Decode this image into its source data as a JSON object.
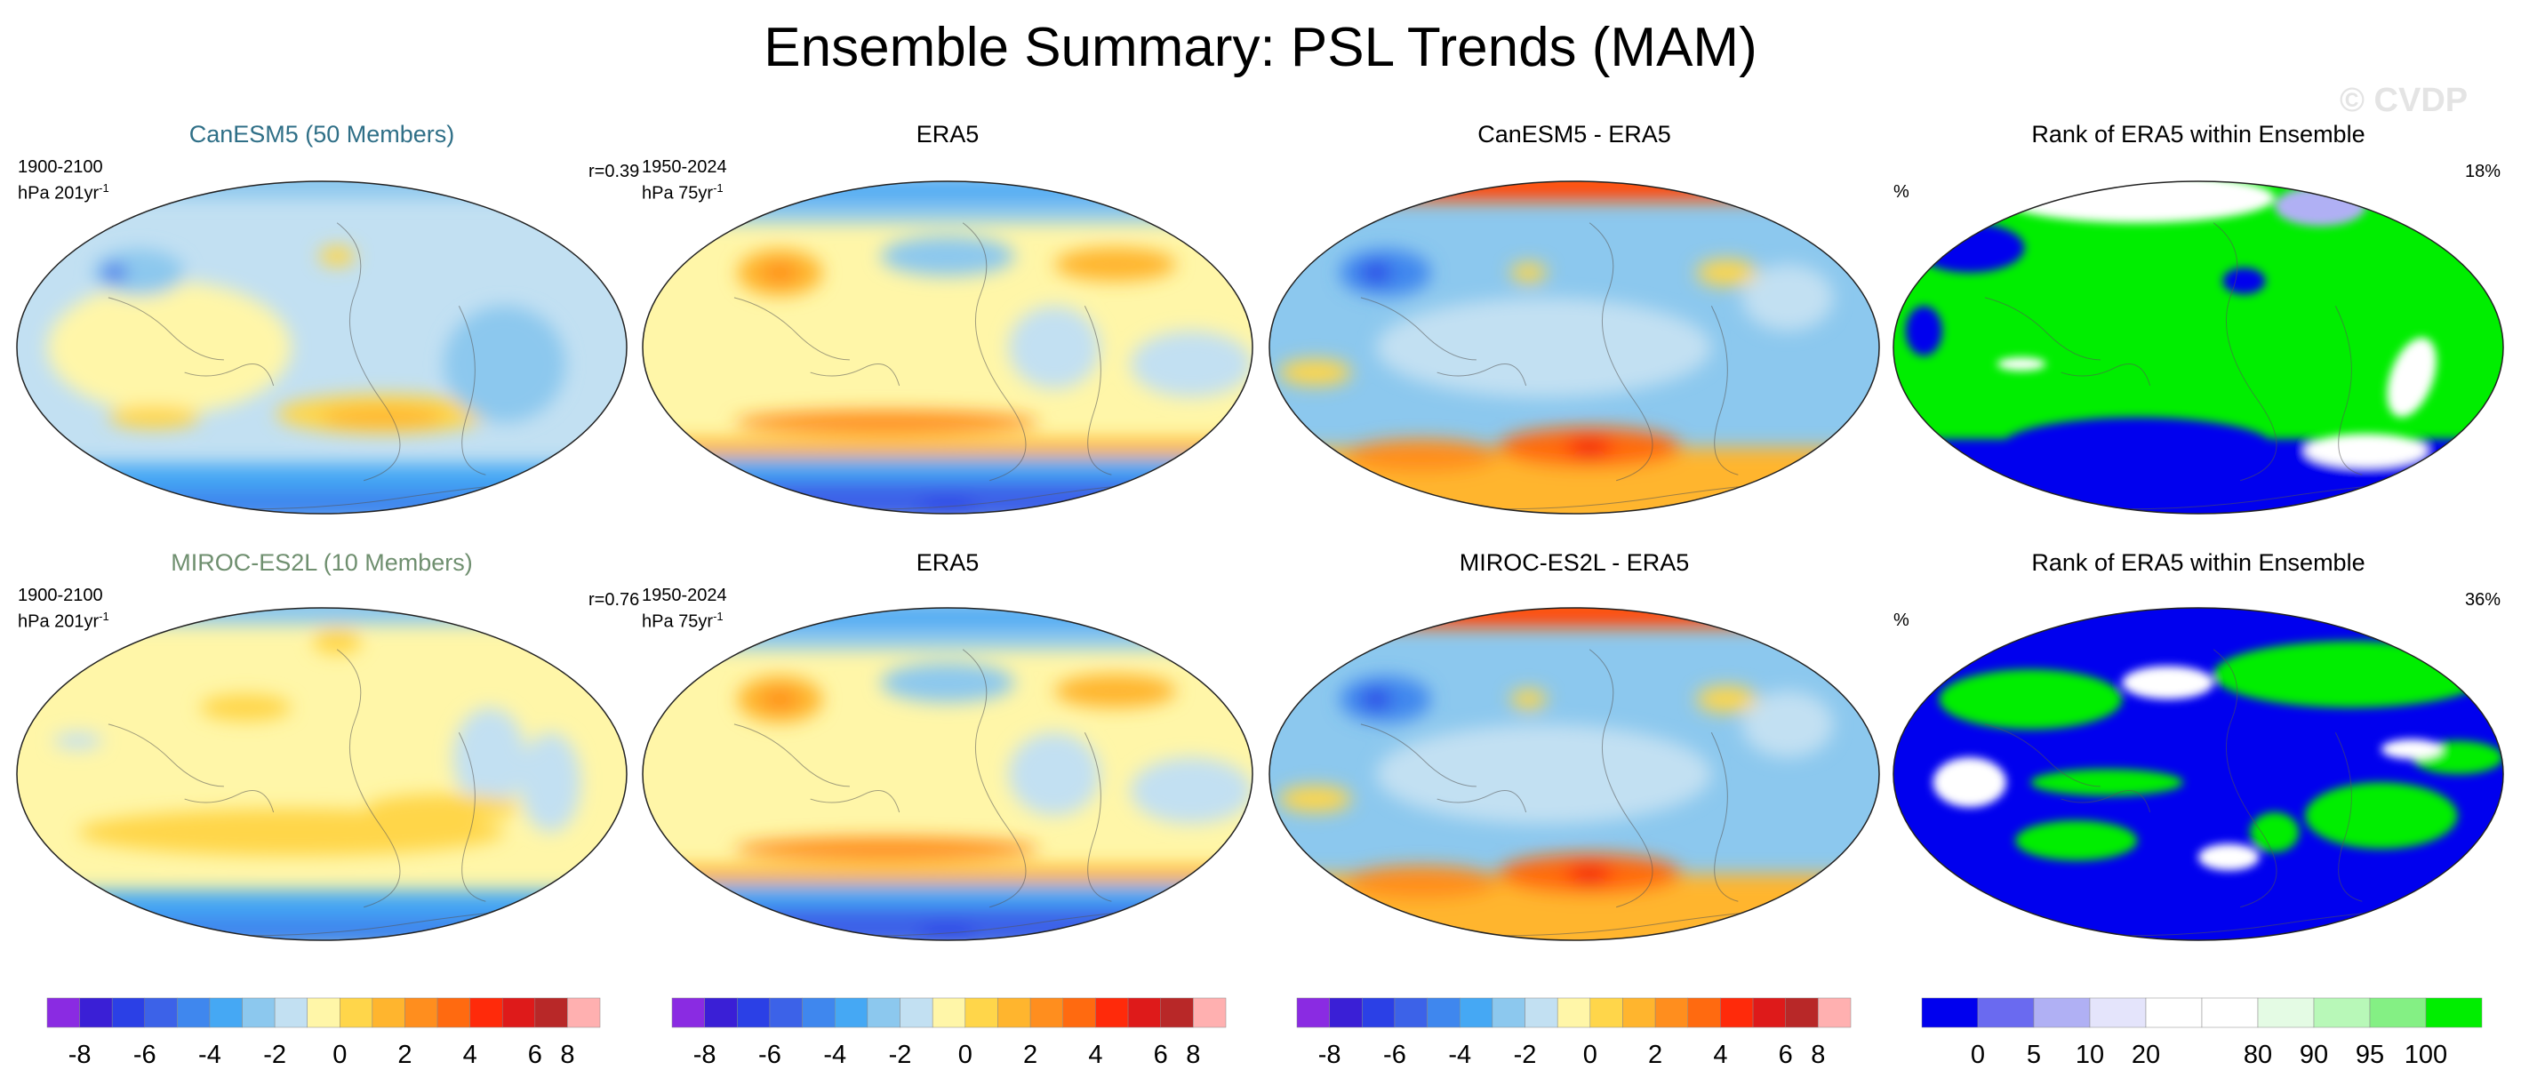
{
  "figure": {
    "title": "Ensemble Summary: PSL Trends (MAM)",
    "watermark": "© CVDP"
  },
  "rows": [
    {
      "panels": [
        {
          "title": "CanESM5 (50 Members)",
          "title_color": "#2f6f87",
          "period": "1900-2100",
          "units": "hPa 201yr",
          "units_exp": "-1",
          "stat": "r=0.39",
          "kind": "trend"
        },
        {
          "title": "ERA5",
          "title_color": "#000000",
          "period": "1950-2024",
          "units": "hPa 75yr",
          "units_exp": "-1",
          "stat": "",
          "kind": "trend"
        },
        {
          "title": "CanESM5 - ERA5",
          "title_color": "#000000",
          "period": "",
          "units": "",
          "units_exp": "",
          "stat": "",
          "kind": "diff"
        },
        {
          "title": "Rank of ERA5 within Ensemble",
          "title_color": "#000000",
          "period": "",
          "units": "%",
          "units_exp": "",
          "stat": "18%",
          "kind": "rank"
        }
      ]
    },
    {
      "panels": [
        {
          "title": "MIROC-ES2L (10 Members)",
          "title_color": "#6f8f6f",
          "period": "1900-2100",
          "units": "hPa 201yr",
          "units_exp": "-1",
          "stat": "r=0.76",
          "kind": "trend"
        },
        {
          "title": "ERA5",
          "title_color": "#000000",
          "period": "1950-2024",
          "units": "hPa 75yr",
          "units_exp": "-1",
          "stat": "",
          "kind": "trend"
        },
        {
          "title": "MIROC-ES2L - ERA5",
          "title_color": "#000000",
          "period": "",
          "units": "",
          "units_exp": "",
          "stat": "",
          "kind": "diff"
        },
        {
          "title": "Rank of ERA5 within Ensemble",
          "title_color": "#000000",
          "period": "",
          "units": "%",
          "units_exp": "",
          "stat": "36%",
          "kind": "rank"
        }
      ]
    }
  ],
  "colorbars": {
    "trend": {
      "colors": [
        "#8a2be2",
        "#3a1fd6",
        "#2b40e6",
        "#3c62e8",
        "#3f87ee",
        "#45a8f4",
        "#8cc8ee",
        "#c2e0f2",
        "#fff6a8",
        "#ffd64a",
        "#ffb52e",
        "#ff8e1e",
        "#ff6a10",
        "#ff2a0a",
        "#de1a1a",
        "#b82828",
        "#ffb0b0"
      ],
      "tick_labels": [
        "-8",
        "-6",
        "-4",
        "-2",
        "0",
        "2",
        "4",
        "6",
        "8"
      ]
    },
    "rank": {
      "colors": [
        "#0000ee",
        "#6a6af0",
        "#b0b0f4",
        "#e4e4fb",
        "#ffffff",
        "#ffffff",
        "#e4fbe4",
        "#b8f8b8",
        "#84f084",
        "#00ee00"
      ],
      "tick_labels": [
        "0",
        "5",
        "10",
        "20",
        "80",
        "90",
        "95",
        "100"
      ]
    }
  }
}
